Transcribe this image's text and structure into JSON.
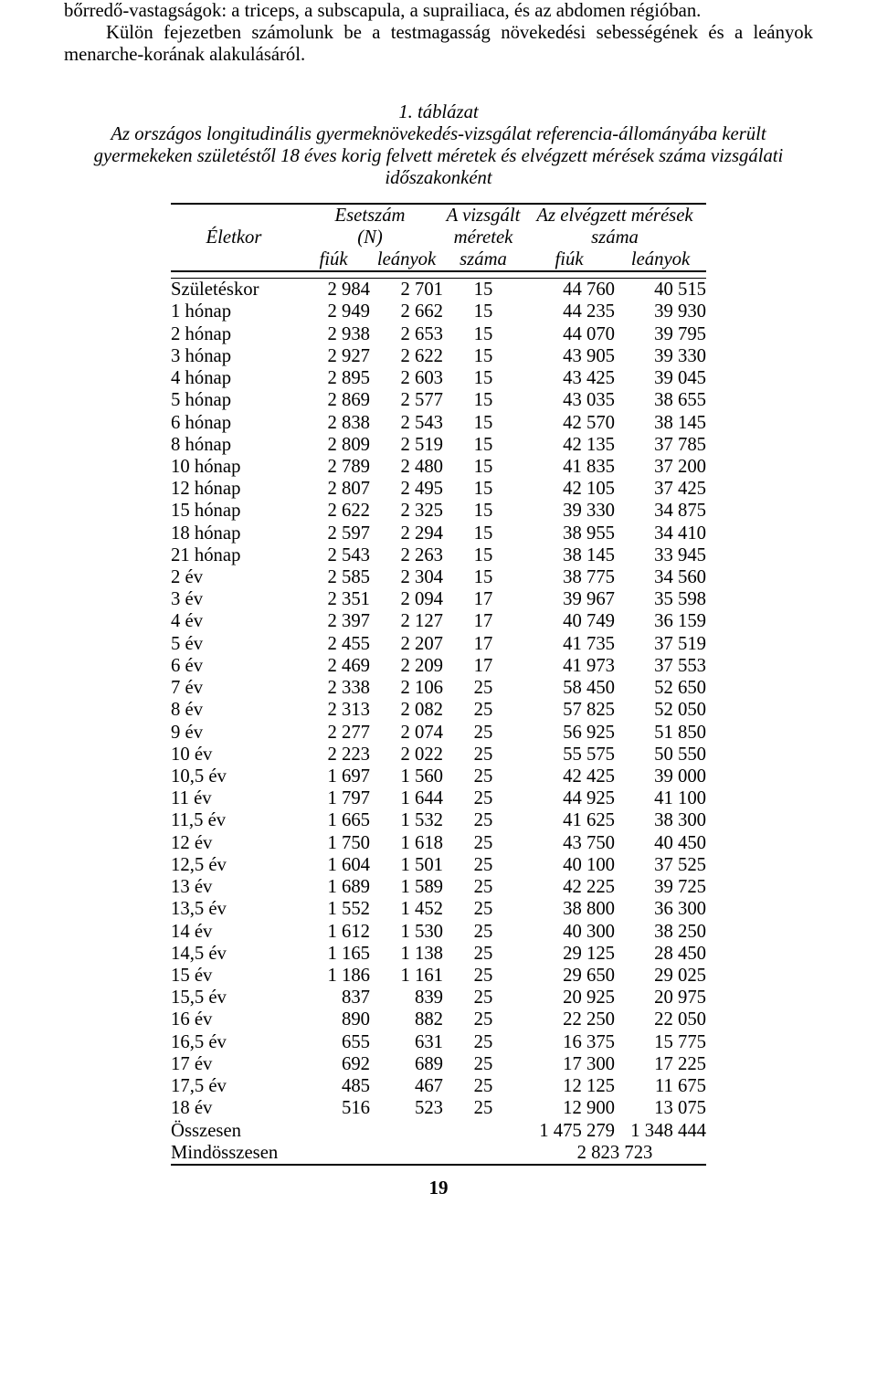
{
  "intro": {
    "line1": "bőrredő-vastagságok: a triceps, a subscapula, a suprailiaca, és az abdomen régióban.",
    "line2": "Külön fejezetben számolunk be a testmagasság növekedési sebességének és a leányok menarche-korának alakulásáról."
  },
  "caption": {
    "title": "1. táblázat",
    "body": "Az országos longitudinális gyermeknövekedés-vizsgálat referencia-állományába került gyermekeken születéstől 18 éves korig felvett méretek és elvégzett mérések száma vizsgálati időszakonként"
  },
  "table": {
    "header": {
      "age": "Életkor",
      "esetszam": "Esetszám",
      "esetszam_sub": "(N)",
      "vizsgalt": "A vizsgált",
      "vizsgalt_sub": "méretek",
      "elvegzett": "Az elvégzett mérések",
      "elvegzett_sub": "száma",
      "fiuk": "fiúk",
      "leanyok": "leányok",
      "szama": "száma"
    },
    "rows": [
      {
        "age": "Születéskor",
        "bf": "2 984",
        "bl": "2 701",
        "m": "15",
        "ef": "44 760",
        "el": "40 515"
      },
      {
        "age": "1 hónap",
        "bf": "2 949",
        "bl": "2 662",
        "m": "15",
        "ef": "44 235",
        "el": "39 930"
      },
      {
        "age": "2 hónap",
        "bf": "2 938",
        "bl": "2 653",
        "m": "15",
        "ef": "44 070",
        "el": "39 795"
      },
      {
        "age": "3 hónap",
        "bf": "2 927",
        "bl": "2 622",
        "m": "15",
        "ef": "43 905",
        "el": "39 330"
      },
      {
        "age": "4 hónap",
        "bf": "2 895",
        "bl": "2 603",
        "m": "15",
        "ef": "43 425",
        "el": "39 045"
      },
      {
        "age": "5 hónap",
        "bf": "2 869",
        "bl": "2 577",
        "m": "15",
        "ef": "43 035",
        "el": "38 655"
      },
      {
        "age": "6 hónap",
        "bf": "2 838",
        "bl": "2 543",
        "m": "15",
        "ef": "42 570",
        "el": "38 145"
      },
      {
        "age": "8 hónap",
        "bf": "2 809",
        "bl": "2 519",
        "m": "15",
        "ef": "42 135",
        "el": "37 785"
      },
      {
        "age": "10 hónap",
        "bf": "2 789",
        "bl": "2 480",
        "m": "15",
        "ef": "41 835",
        "el": "37 200"
      },
      {
        "age": "12 hónap",
        "bf": "2 807",
        "bl": "2 495",
        "m": "15",
        "ef": "42 105",
        "el": "37 425"
      },
      {
        "age": "15 hónap",
        "bf": "2 622",
        "bl": "2 325",
        "m": "15",
        "ef": "39 330",
        "el": "34 875"
      },
      {
        "age": "18 hónap",
        "bf": "2 597",
        "bl": "2 294",
        "m": "15",
        "ef": "38 955",
        "el": "34 410"
      },
      {
        "age": "21 hónap",
        "bf": "2 543",
        "bl": "2 263",
        "m": "15",
        "ef": "38 145",
        "el": "33 945"
      },
      {
        "age": "2 év",
        "bf": "2 585",
        "bl": "2 304",
        "m": "15",
        "ef": "38 775",
        "el": "34 560"
      },
      {
        "age": "3 év",
        "bf": "2 351",
        "bl": "2 094",
        "m": "17",
        "ef": "39 967",
        "el": "35 598"
      },
      {
        "age": "4 év",
        "bf": "2 397",
        "bl": "2 127",
        "m": "17",
        "ef": "40 749",
        "el": "36 159"
      },
      {
        "age": "5 év",
        "bf": "2 455",
        "bl": "2 207",
        "m": "17",
        "ef": "41 735",
        "el": "37 519"
      },
      {
        "age": "6 év",
        "bf": "2 469",
        "bl": "2 209",
        "m": "17",
        "ef": "41 973",
        "el": "37 553"
      },
      {
        "age": "7 év",
        "bf": "2 338",
        "bl": "2 106",
        "m": "25",
        "ef": "58 450",
        "el": "52 650"
      },
      {
        "age": "8 év",
        "bf": "2 313",
        "bl": "2 082",
        "m": "25",
        "ef": "57 825",
        "el": "52 050"
      },
      {
        "age": "9 év",
        "bf": "2 277",
        "bl": "2 074",
        "m": "25",
        "ef": "56 925",
        "el": "51 850"
      },
      {
        "age": "10 év",
        "bf": "2 223",
        "bl": "2 022",
        "m": "25",
        "ef": "55 575",
        "el": "50 550"
      },
      {
        "age": "10,5 év",
        "bf": "1 697",
        "bl": "1 560",
        "m": "25",
        "ef": "42 425",
        "el": "39 000"
      },
      {
        "age": "11 év",
        "bf": "1 797",
        "bl": "1 644",
        "m": "25",
        "ef": "44 925",
        "el": "41 100"
      },
      {
        "age": "11,5 év",
        "bf": "1 665",
        "bl": "1 532",
        "m": "25",
        "ef": "41 625",
        "el": "38 300"
      },
      {
        "age": "12 év",
        "bf": "1 750",
        "bl": "1 618",
        "m": "25",
        "ef": "43 750",
        "el": "40 450"
      },
      {
        "age": "12,5 év",
        "bf": "1 604",
        "bl": "1 501",
        "m": "25",
        "ef": "40 100",
        "el": "37 525"
      },
      {
        "age": "13 év",
        "bf": "1 689",
        "bl": "1 589",
        "m": "25",
        "ef": "42 225",
        "el": "39 725"
      },
      {
        "age": "13,5 év",
        "bf": "1 552",
        "bl": "1 452",
        "m": "25",
        "ef": "38 800",
        "el": "36 300"
      },
      {
        "age": "14 év",
        "bf": "1 612",
        "bl": "1 530",
        "m": "25",
        "ef": "40 300",
        "el": "38 250"
      },
      {
        "age": "14,5 év",
        "bf": "1 165",
        "bl": "1 138",
        "m": "25",
        "ef": "29 125",
        "el": "28 450"
      },
      {
        "age": "15 év",
        "bf": "1 186",
        "bl": "1 161",
        "m": "25",
        "ef": "29 650",
        "el": "29 025"
      },
      {
        "age": "15,5 év",
        "bf": "837",
        "bl": "839",
        "m": "25",
        "ef": "20 925",
        "el": "20 975"
      },
      {
        "age": "16 év",
        "bf": "890",
        "bl": "882",
        "m": "25",
        "ef": "22 250",
        "el": "22 050"
      },
      {
        "age": "16,5 év",
        "bf": "655",
        "bl": "631",
        "m": "25",
        "ef": "16 375",
        "el": "15 775"
      },
      {
        "age": "17 év",
        "bf": "692",
        "bl": "689",
        "m": "25",
        "ef": "17 300",
        "el": "17 225"
      },
      {
        "age": "17,5 év",
        "bf": "485",
        "bl": "467",
        "m": "25",
        "ef": "12 125",
        "el": "11 675"
      },
      {
        "age": "18 év",
        "bf": "516",
        "bl": "523",
        "m": "25",
        "ef": "12 900",
        "el": "13 075"
      }
    ],
    "totals": {
      "osszesen_label": "Összesen",
      "osszesen_ef": "1 475 279",
      "osszesen_el": "1 348 444",
      "mindosszesen_label": "Mindösszesen",
      "mindosszesen_val": "2 823 723"
    }
  },
  "pageNumber": "19"
}
